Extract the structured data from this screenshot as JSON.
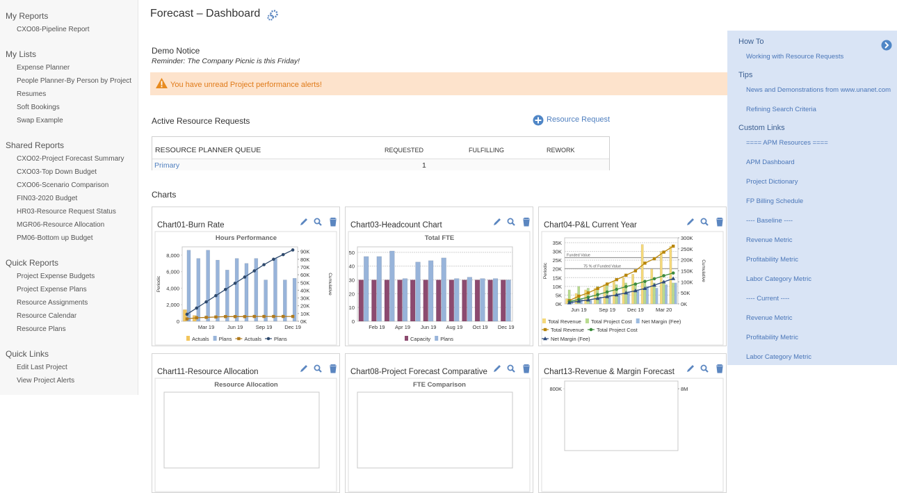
{
  "sidebar": {
    "sections": [
      {
        "title": "My Reports",
        "items": [
          "CXO08-Pipeline Report"
        ]
      },
      {
        "title": "My Lists",
        "items": [
          "Expense Planner",
          "People Planner-By Person by Project",
          "Resumes",
          "Soft Bookings",
          "Swap Example"
        ]
      },
      {
        "title": "Shared Reports",
        "items": [
          "CXO02-Project Forecast Summary",
          "CXO03-Top Down Budget",
          "CXO06-Scenario Comparison",
          "FIN03-2020 Budget",
          "HR03-Resource Request Status",
          "MGR06-Resource Allocation",
          "PM06-Bottom up Budget"
        ]
      },
      {
        "title": "Quick Reports",
        "items": [
          "Project Expense Budgets",
          "Project Expense Plans",
          "Resource Assignments",
          "Resource Calendar",
          "Resource Plans"
        ]
      },
      {
        "title": "Quick Links",
        "items": [
          "Edit Last Project",
          "View Project Alerts"
        ]
      }
    ]
  },
  "header": {
    "title": "Forecast – Dashboard"
  },
  "notice": {
    "title": "Demo Notice",
    "message": "Reminder: The Company Picnic is this Friday!"
  },
  "alert": "You have unread Project performance alerts!",
  "requests": {
    "title": "Active Resource Requests",
    "add_button": "Resource Request",
    "table": {
      "columns": [
        "RESOURCE PLANNER QUEUE",
        "REQUESTED",
        "FULFILLING",
        "REWORK"
      ],
      "rows": [
        {
          "name": "Primary",
          "requested": 1
        }
      ]
    }
  },
  "charts_heading": "Charts",
  "chart_data": [
    {
      "type": "bar",
      "title": "Chart01-Burn Rate",
      "subtitle": "Hours Performance",
      "y_label": "Periodic",
      "y2_label": "Cumulative",
      "categories": [
        null,
        null,
        "Mar 19",
        null,
        null,
        "Jun 19",
        null,
        null,
        "Sep 19",
        null,
        null,
        "Dec 19"
      ],
      "ylim": [
        0,
        9000
      ],
      "yticks": [
        0,
        {
          "value": 2000,
          "label": "2,000"
        },
        {
          "value": 4000,
          "label": "4,000"
        },
        {
          "value": 6000,
          "label": "6,000"
        },
        {
          "value": 8000,
          "label": "8,000"
        }
      ],
      "y2lim": [
        0,
        96000
      ],
      "y2ticks": [
        {
          "value": 0,
          "label": "0K"
        },
        {
          "value": 10000,
          "label": "10K"
        },
        {
          "value": 20000,
          "label": "20K"
        },
        {
          "value": 30000,
          "label": "30K"
        },
        {
          "value": 40000,
          "label": "40K"
        },
        {
          "value": 50000,
          "label": "50K"
        },
        {
          "value": 60000,
          "label": "60K"
        },
        {
          "value": 70000,
          "label": "70K"
        },
        {
          "value": 80000,
          "label": "80K"
        },
        {
          "value": 90000,
          "label": "90K"
        }
      ],
      "grid": false,
      "series": [
        {
          "name": "Actuals",
          "kind": "bar",
          "color": "#f2c55c",
          "values": [
            1400,
            700,
            0,
            0,
            0,
            0,
            0,
            0,
            0,
            0,
            0,
            0
          ]
        },
        {
          "name": "Plans",
          "kind": "bar",
          "color": "#98b4da",
          "values": [
            8600,
            7600,
            8600,
            7400,
            6200,
            7600,
            7000,
            7600,
            5000,
            7600,
            5000,
            5200
          ]
        },
        {
          "name": "Actuals",
          "kind": "line",
          "axis": "y2",
          "marker": "square",
          "color": "#b07a1c",
          "values": [
            3000,
            4500,
            5000,
            5500,
            6000,
            6000,
            6000,
            6200,
            6200,
            6200,
            6200,
            6200
          ]
        },
        {
          "name": "Plans",
          "kind": "line",
          "axis": "y2",
          "marker": "circle",
          "color": "#2f4a6d",
          "values": [
            9000,
            17000,
            25000,
            33000,
            41000,
            49000,
            57000,
            65000,
            73000,
            80000,
            86000,
            92000
          ]
        }
      ]
    },
    {
      "type": "bar",
      "title": "Chart03-Headcount Chart",
      "subtitle": "Total FTE",
      "categories": [
        null,
        "Feb 19",
        null,
        "Apr 19",
        null,
        "Jun 19",
        null,
        "Aug 19",
        null,
        "Oct 19",
        null,
        "Dec 19"
      ],
      "ylim": [
        0,
        54
      ],
      "yticks": [
        0,
        10,
        20,
        30,
        40,
        50
      ],
      "grid": true,
      "series": [
        {
          "name": "Capacity",
          "kind": "bar",
          "color": "#8c4a6f",
          "values": [
            30,
            30,
            30,
            30,
            30,
            30,
            30,
            30,
            30,
            30,
            30,
            30
          ]
        },
        {
          "name": "Plans",
          "kind": "bar",
          "color": "#98b4da",
          "values": [
            47,
            47,
            51,
            31,
            43,
            44,
            46,
            31,
            32,
            31,
            31,
            30
          ]
        }
      ]
    },
    {
      "type": "bar",
      "title": "Chart04-P&L Current Year",
      "y_label": "Periodic",
      "y2_label": "Cumulative",
      "categories": [
        null,
        "Jun 19",
        null,
        null,
        "Sep 19",
        null,
        null,
        "Dec 19",
        null,
        null,
        "Mar 20",
        null
      ],
      "ylim": [
        0,
        37800
      ],
      "yticks": [
        {
          "value": 0,
          "label": "0K"
        },
        {
          "value": 5000,
          "label": "5K"
        },
        {
          "value": 10000,
          "label": "10K"
        },
        {
          "value": 15000,
          "label": "15K"
        },
        {
          "value": 20000,
          "label": "20K"
        },
        {
          "value": 25000,
          "label": "25K"
        },
        {
          "value": 30000,
          "label": "30K"
        },
        {
          "value": 35000,
          "label": "35K"
        }
      ],
      "y2lim": [
        0,
        300000
      ],
      "y2ticks": [
        {
          "value": 0,
          "label": "0K"
        },
        {
          "value": 50000,
          "label": "50K"
        },
        {
          "value": 100000,
          "label": "100K"
        },
        {
          "value": 150000,
          "label": "150K"
        },
        {
          "value": 200000,
          "label": "200K"
        },
        {
          "value": 250000,
          "label": "250K"
        },
        {
          "value": 300000,
          "label": "300K"
        }
      ],
      "grid": true,
      "ref_lines": [
        {
          "label": "Funded Value",
          "value": 210000,
          "axis": "y2"
        },
        {
          "label": "75 % of Funded Value",
          "value": 160000,
          "axis": "y2"
        }
      ],
      "series": [
        {
          "name": "Total Revenue",
          "kind": "bar",
          "color": "#f5d97a",
          "values": [
            3000,
            6000,
            8000,
            9000,
            11000,
            13000,
            15000,
            17000,
            34000,
            20000,
            30000,
            33000
          ]
        },
        {
          "name": "Total Project Cost",
          "kind": "bar",
          "color": "#b8db8f",
          "values": [
            8000,
            10000,
            9000,
            10000,
            12000,
            11000,
            12000,
            11000,
            12000,
            12000,
            13000,
            12000
          ]
        },
        {
          "name": "Net Margin (Fee)",
          "kind": "bar",
          "color": "#9cbbe0",
          "values": [
            2000,
            3000,
            2000,
            4000,
            5000,
            6000,
            7000,
            8000,
            10000,
            9000,
            11000,
            12000
          ]
        },
        {
          "name": "Total Revenue",
          "kind": "line",
          "axis": "y2",
          "marker": "square",
          "color": "#b8860b",
          "values": [
            15000,
            35000,
            50000,
            70000,
            90000,
            110000,
            130000,
            150000,
            185000,
            205000,
            235000,
            262000
          ]
        },
        {
          "name": "Total Project Cost",
          "kind": "line",
          "axis": "y2",
          "marker": "circle",
          "color": "#3d8b3d",
          "values": [
            10000,
            20000,
            30000,
            42000,
            54000,
            66000,
            78000,
            90000,
            102000,
            114000,
            128000,
            140000
          ]
        },
        {
          "name": "Net Margin (Fee)",
          "kind": "line",
          "axis": "y2",
          "marker": "triangle",
          "color": "#2e4a7b",
          "values": [
            5000,
            12000,
            18000,
            25000,
            33000,
            41000,
            50000,
            60000,
            70000,
            85000,
            100000,
            115000
          ]
        }
      ]
    },
    {
      "type": "bar",
      "title": "Chart11-Resource Allocation",
      "subtitle": "Resource Allocation"
    },
    {
      "type": "bar",
      "title": "Chart08-Project Forecast Comparative",
      "subtitle": "FTE Comparison"
    },
    {
      "type": "line",
      "title": "Chart13-Revenue & Margin Forecast",
      "ylim": [
        0,
        900000
      ],
      "yticks": [
        {
          "value": 800000,
          "label": "800K"
        }
      ],
      "y2lim": [
        0,
        9000000
      ],
      "y2ticks": [
        {
          "value": 8000000,
          "label": "8M"
        }
      ]
    }
  ],
  "help_panel": {
    "sections": [
      {
        "title": "How To",
        "links": [
          "Working with Resource Requests"
        ]
      },
      {
        "title": "Tips",
        "links": [
          "News and Demonstrations from www.unanet.com",
          "Refining Search Criteria"
        ]
      },
      {
        "title": "Custom Links",
        "links": [
          "==== APM Resources ====",
          "APM Dashboard",
          "Project Dictionary",
          "FP Billing Schedule",
          "---- Baseline ----",
          "Revenue Metric",
          "Profitability Metric",
          "Labor Category Metric",
          "---- Current ----",
          "Revenue Metric",
          "Profitability Metric",
          "Labor Category Metric"
        ]
      }
    ]
  }
}
